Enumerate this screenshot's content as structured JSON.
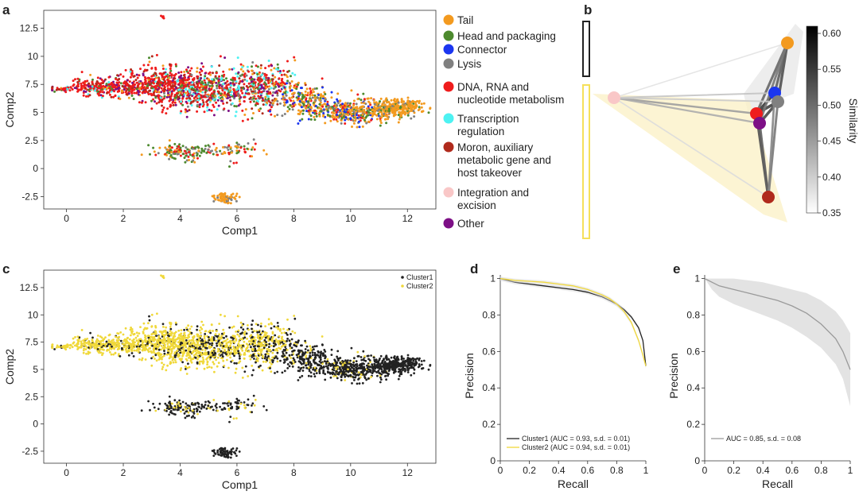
{
  "panel_labels": [
    "a",
    "b",
    "c",
    "d",
    "e"
  ],
  "colors": {
    "tail": "#f39a1f",
    "head": "#4d8a2e",
    "connector": "#1b36f0",
    "lysis": "#808080",
    "dna": "#ef1c1c",
    "transcription": "#4df2f2",
    "moron": "#b02a1c",
    "integration": "#f9c7c7",
    "other": "#7d0f86",
    "cluster1": "#222222",
    "cluster2": "#f0d83a"
  },
  "chart_data": [
    {
      "id": "a",
      "type": "scatter",
      "xlabel": "Comp1",
      "ylabel": "Comp2",
      "xlim": [
        -0.8,
        13
      ],
      "ylim": [
        -3.6,
        14.1
      ],
      "xticks": [
        0,
        2,
        4,
        6,
        8,
        10,
        12
      ],
      "yticks": [
        -2.5,
        0,
        2.5,
        5.0,
        7.5,
        10.0,
        12.5
      ],
      "legend": [
        {
          "key": "tail",
          "label": "Tail"
        },
        {
          "key": "head",
          "label": "Head and packaging"
        },
        {
          "key": "connector",
          "label": "Connector"
        },
        {
          "key": "lysis",
          "label": "Lysis"
        },
        {
          "key": "dna",
          "label": "DNA, RNA and nucleotide metabolism"
        },
        {
          "key": "transcription",
          "label": "Transcription regulation"
        },
        {
          "key": "moron",
          "label": "Moron, auxiliary metabolic gene and host takeover"
        },
        {
          "key": "integration",
          "label": "Integration and excision"
        },
        {
          "key": "other",
          "label": "Other"
        }
      ]
    },
    {
      "id": "b",
      "type": "network",
      "colorbar": {
        "label": "Similarity",
        "range": [
          0.35,
          0.61
        ],
        "ticks": [
          0.35,
          0.4,
          0.45,
          0.5,
          0.55,
          0.6
        ]
      },
      "nodes": [
        "integration",
        "tail",
        "connector",
        "lysis",
        "dna",
        "other",
        "moron"
      ],
      "clusters": [
        {
          "name": "Cluster1",
          "members": [
            "tail",
            "connector",
            "lysis"
          ]
        },
        {
          "name": "Cluster2",
          "members": [
            "integration",
            "dna",
            "other",
            "moron"
          ]
        }
      ],
      "edges": [
        {
          "source": "dna",
          "target": "other",
          "similarity": 0.6
        },
        {
          "source": "dna",
          "target": "connector",
          "similarity": 0.58
        },
        {
          "source": "dna",
          "target": "lysis",
          "similarity": 0.57
        },
        {
          "source": "other",
          "target": "lysis",
          "similarity": 0.56
        },
        {
          "source": "connector",
          "target": "lysis",
          "similarity": 0.58
        },
        {
          "source": "tail",
          "target": "lysis",
          "similarity": 0.55
        },
        {
          "source": "tail",
          "target": "connector",
          "similarity": 0.53
        },
        {
          "source": "tail",
          "target": "dna",
          "similarity": 0.52
        },
        {
          "source": "tail",
          "target": "other",
          "similarity": 0.5
        },
        {
          "source": "moron",
          "target": "dna",
          "similarity": 0.55
        },
        {
          "source": "moron",
          "target": "other",
          "similarity": 0.53
        },
        {
          "source": "moron",
          "target": "lysis",
          "similarity": 0.5
        },
        {
          "source": "moron",
          "target": "connector",
          "similarity": 0.48
        },
        {
          "source": "integration",
          "target": "dna",
          "similarity": 0.45
        },
        {
          "source": "integration",
          "target": "other",
          "similarity": 0.43
        },
        {
          "source": "integration",
          "target": "connector",
          "similarity": 0.4
        },
        {
          "source": "integration",
          "target": "lysis",
          "similarity": 0.39
        },
        {
          "source": "integration",
          "target": "moron",
          "similarity": 0.37
        },
        {
          "source": "integration",
          "target": "tail",
          "similarity": 0.36
        }
      ]
    },
    {
      "id": "c",
      "type": "scatter",
      "xlabel": "Comp1",
      "ylabel": "Comp2",
      "xlim": [
        -0.8,
        13
      ],
      "ylim": [
        -3.6,
        14.1
      ],
      "xticks": [
        0,
        2,
        4,
        6,
        8,
        10,
        12
      ],
      "yticks": [
        -2.5,
        0,
        2.5,
        5.0,
        7.5,
        10.0,
        12.5
      ],
      "legend": [
        {
          "key": "cluster1",
          "label": "Cluster1"
        },
        {
          "key": "cluster2",
          "label": "Cluster2"
        }
      ]
    },
    {
      "id": "d",
      "type": "line",
      "xlabel": "Recall",
      "ylabel": "Precision",
      "xlim": [
        0,
        1
      ],
      "ylim": [
        0,
        1.02
      ],
      "xticks": [
        0,
        0.2,
        0.4,
        0.6,
        0.8,
        1.0
      ],
      "yticks": [
        0,
        0.2,
        0.4,
        0.6,
        0.8,
        1.0
      ],
      "series": [
        {
          "name": "Cluster1 (AUC = 0.93, s.d. = 0.01)",
          "key": "cluster1",
          "x": [
            0,
            0.05,
            0.1,
            0.2,
            0.3,
            0.4,
            0.5,
            0.6,
            0.7,
            0.75,
            0.8,
            0.85,
            0.9,
            0.95,
            0.98,
            1.0
          ],
          "y": [
            1.0,
            0.99,
            0.98,
            0.97,
            0.96,
            0.95,
            0.94,
            0.925,
            0.9,
            0.88,
            0.86,
            0.83,
            0.79,
            0.73,
            0.66,
            0.52
          ]
        },
        {
          "name": "Cluster2 (AUC = 0.94, s.d. = 0.01)",
          "key": "cluster2",
          "x": [
            0,
            0.05,
            0.1,
            0.2,
            0.3,
            0.4,
            0.5,
            0.6,
            0.7,
            0.75,
            0.8,
            0.85,
            0.9,
            0.95,
            0.98,
            1.0
          ],
          "y": [
            1.0,
            0.995,
            0.99,
            0.985,
            0.98,
            0.97,
            0.96,
            0.94,
            0.91,
            0.89,
            0.86,
            0.82,
            0.76,
            0.66,
            0.58,
            0.52
          ]
        }
      ]
    },
    {
      "id": "e",
      "type": "line",
      "xlabel": "Recall",
      "ylabel": "Precision",
      "xlim": [
        0,
        1
      ],
      "ylim": [
        0,
        1.02
      ],
      "xticks": [
        0,
        0.2,
        0.4,
        0.6,
        0.8,
        1.0
      ],
      "yticks": [
        0,
        0.2,
        0.4,
        0.6,
        0.8,
        1.0
      ],
      "series": [
        {
          "name": "AUC = 0.85, s.d. = 0.08",
          "key": "mean",
          "x": [
            0,
            0.05,
            0.1,
            0.2,
            0.3,
            0.4,
            0.5,
            0.6,
            0.7,
            0.8,
            0.9,
            0.95,
            1.0
          ],
          "y": [
            1.0,
            0.98,
            0.96,
            0.94,
            0.92,
            0.9,
            0.88,
            0.85,
            0.81,
            0.75,
            0.67,
            0.6,
            0.5
          ],
          "band_low": [
            1.0,
            0.94,
            0.9,
            0.86,
            0.83,
            0.8,
            0.77,
            0.73,
            0.68,
            0.62,
            0.53,
            0.45,
            0.3
          ],
          "band_high": [
            1.0,
            1.0,
            1.0,
            1.0,
            0.99,
            0.98,
            0.96,
            0.94,
            0.92,
            0.88,
            0.82,
            0.77,
            0.7
          ]
        }
      ]
    }
  ]
}
